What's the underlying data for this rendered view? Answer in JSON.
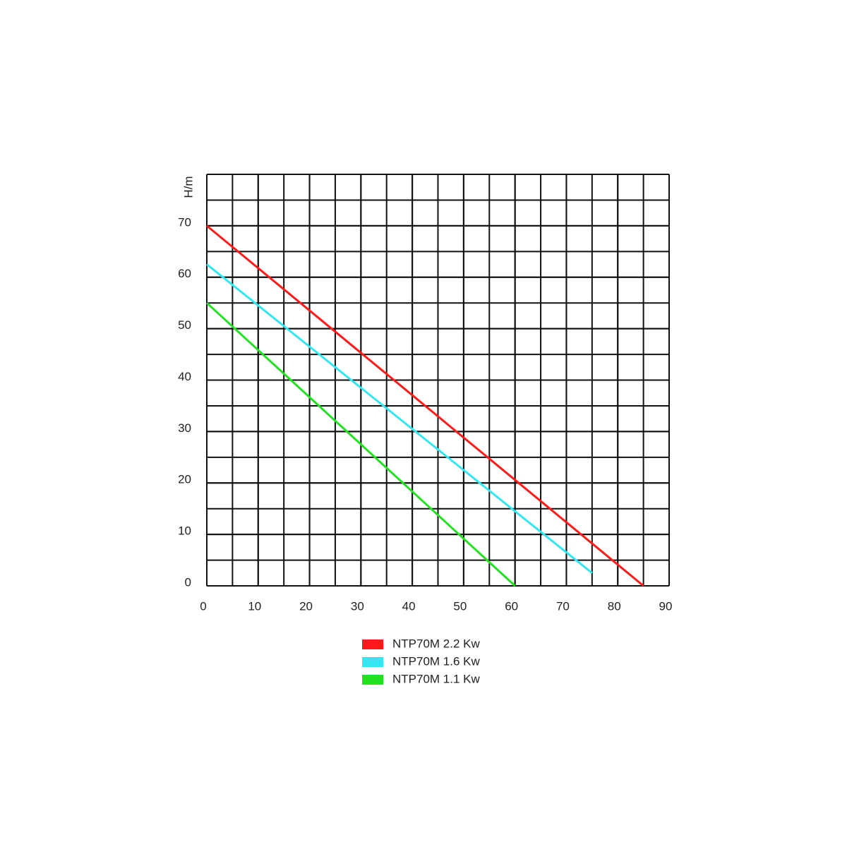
{
  "chart_data": {
    "type": "line",
    "y_label": "H/m",
    "xlim": [
      0,
      90
    ],
    "xticks": [
      0,
      10,
      20,
      30,
      40,
      50,
      60,
      70,
      80,
      90
    ],
    "ylim": [
      0,
      80
    ],
    "yticks": [
      0,
      10,
      20,
      30,
      40,
      50,
      60,
      70
    ],
    "grid": true,
    "legend": "bottom",
    "series": [
      {
        "name": "NTP70M 2.2 Kw",
        "color": "#ff1a1a",
        "x": [
          0,
          85
        ],
        "values": [
          70,
          0
        ]
      },
      {
        "name": "NTP70M 1.6 Kw",
        "color": "#33e6f0",
        "x": [
          0,
          75
        ],
        "values": [
          62.5,
          2.5
        ]
      },
      {
        "name": "NTP70M 1.1 Kw",
        "color": "#22e022",
        "x": [
          0,
          60
        ],
        "values": [
          55,
          0
        ]
      }
    ]
  }
}
